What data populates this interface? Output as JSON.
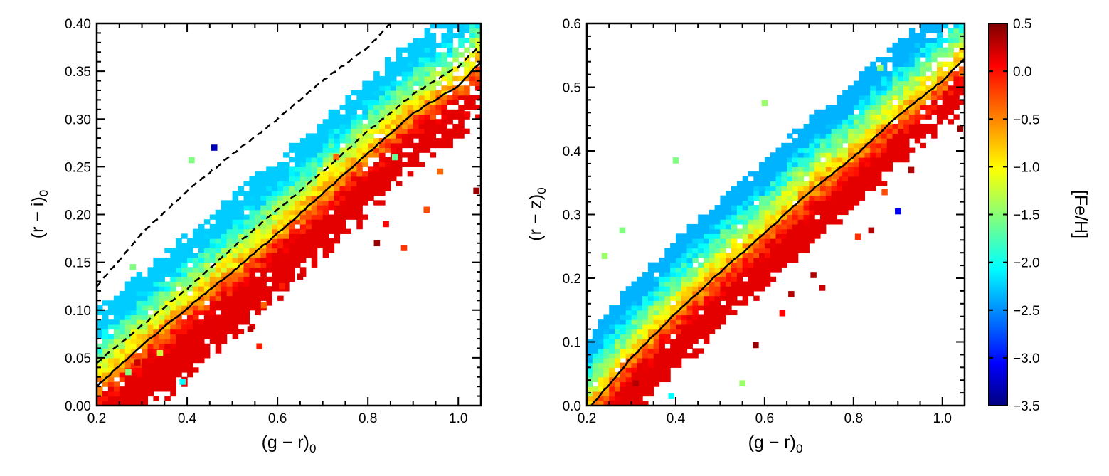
{
  "chart_data": [
    {
      "type": "heatmap",
      "xlabel": {
        "base": "(g − r)",
        "sub": "0",
        "italic_parts": [
          "g",
          "r"
        ]
      },
      "ylabel": {
        "base": "(r − i)",
        "sub": "0",
        "italic_parts": [
          "r",
          "i"
        ]
      },
      "xlim": [
        0.2,
        1.05
      ],
      "ylim": [
        0.0,
        0.4
      ],
      "xticks": [
        "0.2",
        "0.4",
        "0.6",
        "0.8",
        "1.0"
      ],
      "yticks": [
        "0.00",
        "0.05",
        "0.10",
        "0.15",
        "0.20",
        "0.25",
        "0.30",
        "0.35",
        "0.40"
      ],
      "color_value": "[Fe/H]",
      "cell_size": {
        "x": 0.0125,
        "y": 0.005
      },
      "locus_model": {
        "solid_line": {
          "x": [
            0.2,
            0.3,
            0.4,
            0.5,
            0.6,
            0.7,
            0.8,
            0.9,
            1.0,
            1.05
          ],
          "y": [
            0.02,
            0.063,
            0.102,
            0.14,
            0.18,
            0.222,
            0.264,
            0.306,
            0.335,
            0.36
          ]
        },
        "metal_poor_slope": 0.055,
        "spread_per_feh": 0.052,
        "feh_center": -0.6,
        "feh_range": [
          -2.2,
          0.1
        ]
      },
      "lines": [
        {
          "style": "solid",
          "x": [
            0.2,
            0.3,
            0.4,
            0.5,
            0.6,
            0.7,
            0.8,
            0.9,
            1.0,
            1.05
          ],
          "y": [
            0.02,
            0.063,
            0.102,
            0.14,
            0.18,
            0.222,
            0.264,
            0.306,
            0.335,
            0.36
          ]
        },
        {
          "style": "dashed",
          "x": [
            0.2,
            0.3,
            0.4,
            0.5,
            0.6,
            0.7,
            0.8,
            0.9,
            1.0,
            1.05
          ],
          "y": [
            0.045,
            0.084,
            0.122,
            0.165,
            0.205,
            0.245,
            0.287,
            0.326,
            0.355,
            0.378
          ]
        },
        {
          "style": "dashed",
          "x": [
            0.2,
            0.3,
            0.4,
            0.5,
            0.6,
            0.7,
            0.8,
            0.85
          ],
          "y": [
            0.125,
            0.18,
            0.225,
            0.263,
            0.3,
            0.34,
            0.375,
            0.4
          ]
        }
      ],
      "outliers": [
        {
          "x": 0.46,
          "y": 0.27,
          "feh": -3.3
        },
        {
          "x": 0.28,
          "y": 0.145,
          "feh": -1.5
        },
        {
          "x": 0.41,
          "y": 0.257,
          "feh": -1.5
        },
        {
          "x": 0.39,
          "y": 0.025,
          "feh": -2.0
        },
        {
          "x": 0.65,
          "y": 0.135,
          "feh": 0.2
        },
        {
          "x": 0.61,
          "y": 0.125,
          "feh": -0.1
        },
        {
          "x": 0.57,
          "y": 0.105,
          "feh": -0.4
        },
        {
          "x": 0.54,
          "y": 0.08,
          "feh": 0.3
        },
        {
          "x": 0.56,
          "y": 0.062,
          "feh": -0.1
        },
        {
          "x": 0.34,
          "y": 0.055,
          "feh": -1.2
        },
        {
          "x": 0.27,
          "y": 0.035,
          "feh": -1.5
        },
        {
          "x": 0.29,
          "y": 0.045,
          "feh": 0.2
        },
        {
          "x": 0.73,
          "y": 0.26,
          "feh": -0.4
        },
        {
          "x": 0.82,
          "y": 0.17,
          "feh": 0.4
        },
        {
          "x": 0.84,
          "y": 0.19,
          "feh": 0.0
        },
        {
          "x": 0.88,
          "y": 0.165,
          "feh": -0.2
        },
        {
          "x": 0.93,
          "y": 0.205,
          "feh": -0.3
        },
        {
          "x": 0.96,
          "y": 0.245,
          "feh": -0.4
        },
        {
          "x": 1.04,
          "y": 0.225,
          "feh": 0.4
        },
        {
          "x": 1.02,
          "y": 0.305,
          "feh": 0.0
        },
        {
          "x": 0.86,
          "y": 0.26,
          "feh": -1.6
        }
      ]
    },
    {
      "type": "heatmap",
      "xlabel": {
        "base": "(g − r)",
        "sub": "0",
        "italic_parts": [
          "g",
          "r"
        ]
      },
      "ylabel": {
        "base": "(r − z)",
        "sub": "0",
        "italic_parts": [
          "r",
          "z"
        ]
      },
      "xlim": [
        0.2,
        1.05
      ],
      "ylim": [
        0.0,
        0.6
      ],
      "xticks": [
        "0.2",
        "0.4",
        "0.6",
        "0.8",
        "1.0"
      ],
      "yticks": [
        "0.0",
        "0.1",
        "0.2",
        "0.3",
        "0.4",
        "0.5",
        "0.6"
      ],
      "color_value": "[Fe/H]",
      "cell_size": {
        "x": 0.0125,
        "y": 0.0075
      },
      "locus_model": {
        "solid_line": {
          "x": [
            0.21,
            0.3,
            0.4,
            0.5,
            0.6,
            0.7,
            0.8,
            0.9,
            1.0,
            1.05
          ],
          "y": [
            0.0,
            0.075,
            0.145,
            0.21,
            0.27,
            0.335,
            0.39,
            0.455,
            0.51,
            0.545
          ]
        },
        "metal_poor_slope": 0.09,
        "spread_per_feh": 0.075,
        "feh_center": -0.6,
        "feh_range": [
          -2.3,
          0.1
        ]
      },
      "lines": [
        {
          "style": "solid",
          "x": [
            0.21,
            0.3,
            0.4,
            0.5,
            0.6,
            0.7,
            0.8,
            0.9,
            1.0,
            1.05
          ],
          "y": [
            0.0,
            0.075,
            0.145,
            0.21,
            0.27,
            0.335,
            0.39,
            0.455,
            0.51,
            0.545
          ]
        }
      ],
      "outliers": [
        {
          "x": 0.39,
          "y": 0.015,
          "feh": -2.0
        },
        {
          "x": 0.24,
          "y": 0.235,
          "feh": -1.4
        },
        {
          "x": 0.28,
          "y": 0.275,
          "feh": -1.5
        },
        {
          "x": 0.4,
          "y": 0.385,
          "feh": -1.5
        },
        {
          "x": 0.9,
          "y": 0.305,
          "feh": -3.0
        },
        {
          "x": 0.6,
          "y": 0.475,
          "feh": -1.4
        },
        {
          "x": 0.55,
          "y": 0.035,
          "feh": -1.4
        },
        {
          "x": 0.31,
          "y": 0.035,
          "feh": 0.3
        },
        {
          "x": 0.66,
          "y": 0.175,
          "feh": 0.3
        },
        {
          "x": 0.71,
          "y": 0.205,
          "feh": 0.3
        },
        {
          "x": 0.73,
          "y": 0.185,
          "feh": 0.2
        },
        {
          "x": 0.64,
          "y": 0.145,
          "feh": 0.0
        },
        {
          "x": 0.58,
          "y": 0.095,
          "feh": 0.4
        },
        {
          "x": 0.81,
          "y": 0.265,
          "feh": -0.2
        },
        {
          "x": 0.84,
          "y": 0.275,
          "feh": 0.3
        },
        {
          "x": 0.87,
          "y": 0.335,
          "feh": -0.3
        },
        {
          "x": 0.93,
          "y": 0.37,
          "feh": 0.3
        },
        {
          "x": 1.04,
          "y": 0.435,
          "feh": 0.4
        },
        {
          "x": 0.76,
          "y": 0.36,
          "feh": -0.4
        },
        {
          "x": 0.86,
          "y": 0.53,
          "feh": -1.4
        }
      ]
    }
  ],
  "colorbar": {
    "label": "[Fe/H]",
    "vmin": -3.5,
    "vmax": 0.5,
    "ticks": [
      "0.5",
      "0.0",
      "−0.5",
      "−1.0",
      "−1.5",
      "−2.0",
      "−2.5",
      "−3.0",
      "−3.5"
    ],
    "colormap": "jet",
    "stops": [
      "#00007f",
      "#0000ff",
      "#00ffff",
      "#ffff00",
      "#ff0000",
      "#7f0000"
    ]
  }
}
